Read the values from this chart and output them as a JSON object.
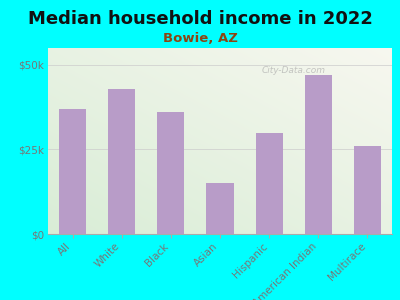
{
  "title": "Median household income in 2022",
  "subtitle": "Bowie, AZ",
  "categories": [
    "All",
    "White",
    "Black",
    "Asian",
    "Hispanic",
    "American Indian",
    "Multirace"
  ],
  "values": [
    37000,
    43000,
    36000,
    15000,
    30000,
    47000,
    26000
  ],
  "bar_color": "#b89cc8",
  "bg_color": "#00ffff",
  "title_color": "#111111",
  "subtitle_color": "#8b4513",
  "tick_label_color": "#777777",
  "ylim": [
    0,
    55000
  ],
  "ytick_labels": [
    "$0",
    "$25k",
    "$50k"
  ],
  "ytick_values": [
    0,
    25000,
    50000
  ],
  "watermark": "City-Data.com",
  "title_fontsize": 13,
  "subtitle_fontsize": 9.5,
  "tick_fontsize": 7.5,
  "plot_grad_colors": [
    "#d4eac8",
    "#f8f8f2"
  ],
  "bar_width": 0.55
}
